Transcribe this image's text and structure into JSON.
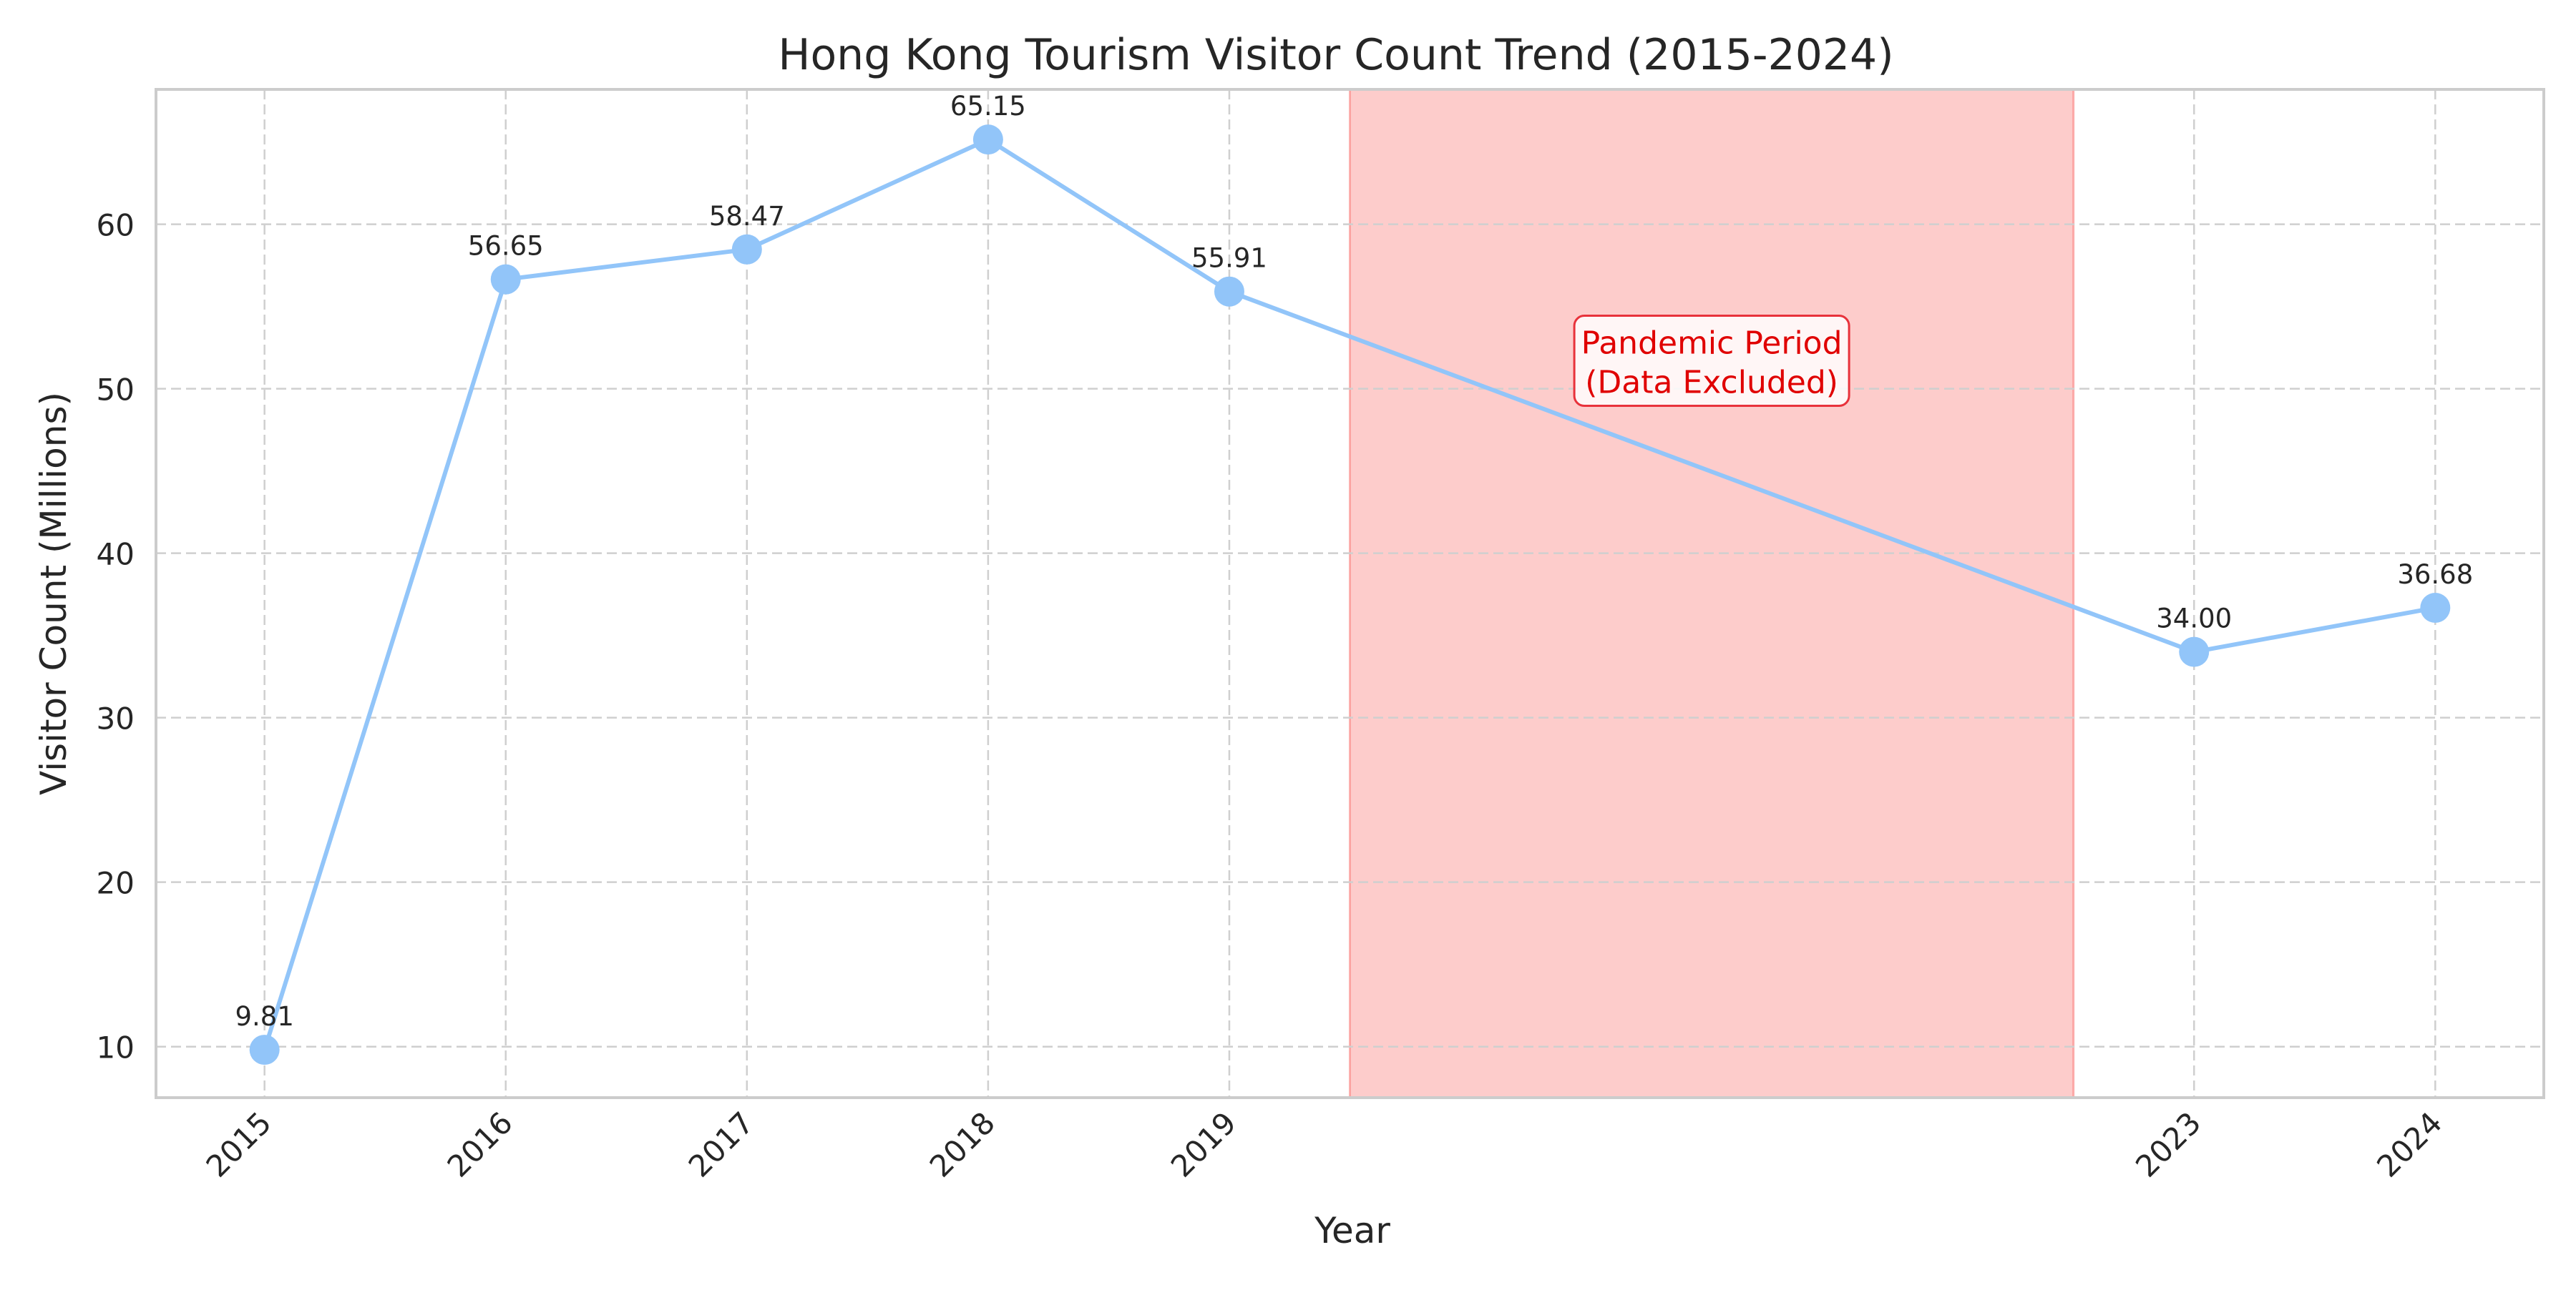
{
  "chart_data": {
    "type": "line",
    "title": "Hong Kong Tourism Visitor Count Trend (2015-2024)",
    "xlabel": "Year",
    "ylabel": "Visitor Count (Millions)",
    "x": [
      2015,
      2016,
      2017,
      2018,
      2019,
      2023,
      2024
    ],
    "x_tick_labels": [
      "2015",
      "2016",
      "2017",
      "2018",
      "2019",
      "2023",
      "2024"
    ],
    "values": [
      9.81,
      56.65,
      58.47,
      65.15,
      55.91,
      34.0,
      36.68
    ],
    "data_labels": [
      "9.81",
      "56.65",
      "58.47",
      "65.15",
      "55.91",
      "34.00",
      "36.68"
    ],
    "xlim": [
      2014.55,
      2024.45
    ],
    "ylim": [
      6.9,
      68.2
    ],
    "y_ticks": [
      10,
      20,
      30,
      40,
      50,
      60
    ],
    "grid": true,
    "line_color": "#92c5f9",
    "shaded_region": {
      "x_range": [
        2019.5,
        2022.5
      ],
      "color": "#fa7876",
      "annotation_lines": [
        "Pandemic Period",
        "(Data Excluded)"
      ],
      "annotation_color": "#e00000",
      "annotation_y": 51.7
    }
  }
}
